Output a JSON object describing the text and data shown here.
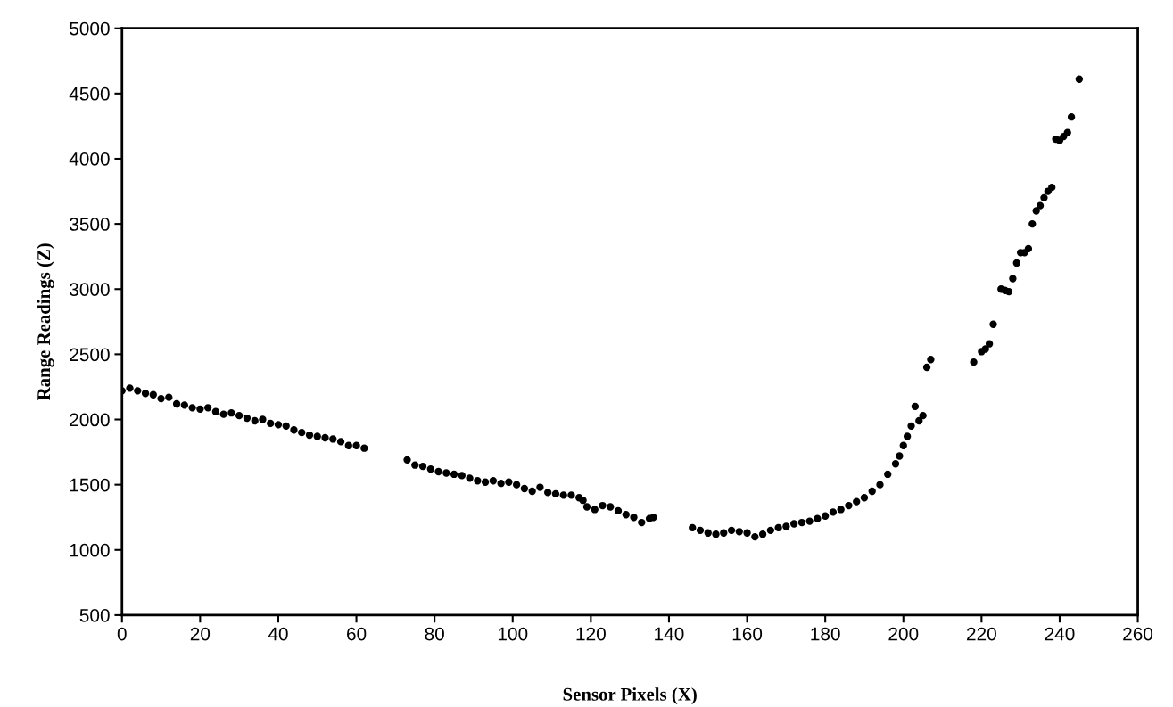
{
  "chart_data": {
    "type": "scatter",
    "xlabel": "Sensor Pixels (X)",
    "ylabel": "Range Readings (Z)",
    "xlim": [
      0,
      260
    ],
    "xticks": [
      0,
      20,
      40,
      60,
      80,
      100,
      120,
      140,
      160,
      180,
      200,
      220,
      240,
      260
    ],
    "ylim": [
      500,
      5000
    ],
    "yticks": [
      500,
      1000,
      1500,
      2000,
      2500,
      3000,
      3500,
      4000,
      4500,
      5000
    ],
    "grid": false,
    "marker": "circle",
    "series": [
      {
        "color": "#000000",
        "x": [
          0,
          2,
          4,
          6,
          8,
          10,
          12,
          14,
          16,
          18,
          20,
          22,
          24,
          26,
          28,
          30,
          32,
          34,
          36,
          38,
          40,
          42,
          44,
          46,
          48,
          50,
          52,
          54,
          56,
          58,
          60,
          62,
          73,
          75,
          77,
          79,
          81,
          83,
          85,
          87,
          89,
          91,
          93,
          95,
          97,
          99,
          101,
          103,
          105,
          107,
          109,
          111,
          113,
          115,
          117,
          118,
          119,
          121,
          123,
          125,
          127,
          129,
          131,
          133,
          135,
          136,
          146,
          148,
          150,
          152,
          154,
          156,
          158,
          160,
          162,
          164,
          166,
          168,
          170,
          172,
          174,
          176,
          178,
          180,
          182,
          184,
          186,
          188,
          190,
          192,
          194,
          196,
          198,
          199,
          200,
          201,
          202,
          203,
          204,
          205,
          206,
          207,
          218,
          220,
          221,
          222,
          223,
          225,
          226,
          227,
          228,
          229,
          230,
          231,
          232,
          233,
          234,
          235,
          236,
          237,
          238,
          239,
          240,
          241,
          242,
          243,
          245
        ],
        "values": [
          2220,
          2240,
          2220,
          2200,
          2190,
          2160,
          2170,
          2120,
          2110,
          2090,
          2080,
          2090,
          2060,
          2040,
          2050,
          2030,
          2010,
          1990,
          2000,
          1970,
          1960,
          1950,
          1920,
          1900,
          1880,
          1870,
          1860,
          1850,
          1830,
          1800,
          1800,
          1780,
          1690,
          1650,
          1640,
          1620,
          1600,
          1590,
          1580,
          1570,
          1550,
          1530,
          1520,
          1530,
          1510,
          1520,
          1500,
          1470,
          1450,
          1480,
          1440,
          1430,
          1420,
          1420,
          1400,
          1380,
          1330,
          1310,
          1340,
          1330,
          1300,
          1270,
          1250,
          1210,
          1240,
          1250,
          1170,
          1150,
          1130,
          1120,
          1130,
          1150,
          1140,
          1130,
          1100,
          1120,
          1150,
          1170,
          1180,
          1200,
          1210,
          1220,
          1240,
          1260,
          1290,
          1310,
          1340,
          1370,
          1400,
          1450,
          1500,
          1580,
          1660,
          1720,
          1800,
          1870,
          1950,
          2100,
          1990,
          2030,
          2400,
          2460,
          2440,
          2520,
          2540,
          2580,
          2730,
          3000,
          2990,
          2980,
          3080,
          3200,
          3280,
          3280,
          3310,
          3500,
          3600,
          3640,
          3700,
          3750,
          3780,
          4150,
          4140,
          4170,
          4200,
          4320,
          4610
        ]
      }
    ]
  }
}
